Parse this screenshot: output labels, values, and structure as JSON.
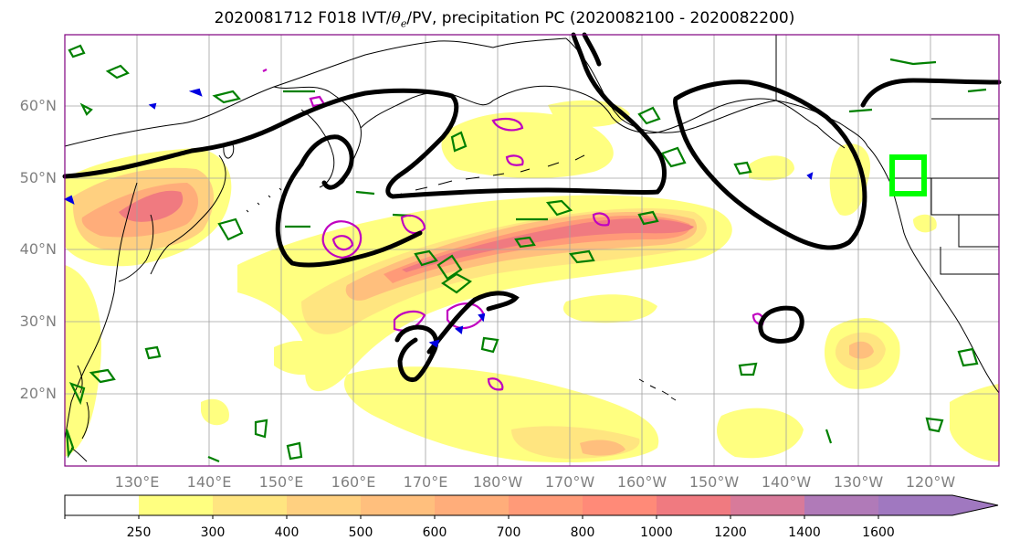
{
  "title": {
    "prefix": "2020081712 F018 IVT/",
    "theta": "θ",
    "theta_sub": "e",
    "suffix": "/PV, precipitation PC (2020082100 - 2020082200)"
  },
  "map": {
    "lat_labels": [
      "60°N",
      "50°N",
      "40°N",
      "30°N",
      "20°N"
    ],
    "lon_labels": [
      "130°E",
      "140°E",
      "150°E",
      "160°E",
      "170°E",
      "180°W",
      "170°W",
      "160°W",
      "150°W",
      "140°W",
      "130°W",
      "120°W"
    ],
    "grid": true,
    "colors": {
      "pc_contour": "#000000",
      "theta_e_contour": "#008000",
      "pv_contour": "#c000c0",
      "target_box": "#00ff00",
      "coast": "#000000",
      "gridline": "#a0a0a0",
      "frame": "#800080"
    }
  },
  "colorbar": {
    "labels": [
      "250",
      "300",
      "400",
      "500",
      "600",
      "700",
      "800",
      "1000",
      "1200",
      "1400",
      "1600"
    ],
    "colors": [
      "#ffffff",
      "#ffff80",
      "#ffe580",
      "#ffd080",
      "#ffbf7d",
      "#ffad7a",
      "#ff9a78",
      "#ff8a78",
      "#f07a80",
      "#d87a9a",
      "#b07ab8",
      "#a078c0"
    ],
    "extend": "max"
  }
}
